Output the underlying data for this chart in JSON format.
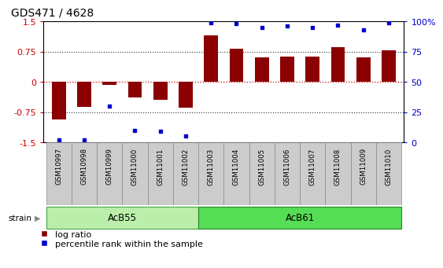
{
  "title": "GDS471 / 4628",
  "samples": [
    "GSM10997",
    "GSM10998",
    "GSM10999",
    "GSM11000",
    "GSM11001",
    "GSM11002",
    "GSM11003",
    "GSM11004",
    "GSM11005",
    "GSM11006",
    "GSM11007",
    "GSM11008",
    "GSM11009",
    "GSM11010"
  ],
  "log_ratio": [
    -0.93,
    -0.62,
    -0.07,
    -0.38,
    -0.45,
    -0.65,
    1.15,
    0.82,
    0.6,
    0.62,
    0.62,
    0.85,
    0.6,
    0.77
  ],
  "percentile": [
    2,
    2,
    30,
    10,
    9,
    5,
    99,
    98,
    95,
    96,
    95,
    97,
    93,
    99
  ],
  "groups": [
    {
      "name": "AcB55",
      "start": 0,
      "end": 5
    },
    {
      "name": "AcB61",
      "start": 6,
      "end": 13
    }
  ],
  "ylim_left": [
    -1.5,
    1.5
  ],
  "ylim_right": [
    0,
    100
  ],
  "yticks_left": [
    -1.5,
    -0.75,
    0,
    0.75,
    1.5
  ],
  "ytick_labels_left": [
    "-1.5",
    "-0.75",
    "0",
    "0.75",
    "1.5"
  ],
  "yticks_right": [
    0,
    25,
    50,
    75,
    100
  ],
  "ytick_labels_right": [
    "0",
    "25",
    "50",
    "75",
    "100%"
  ],
  "bar_color": "#8B0000",
  "dot_color": "#0000cc",
  "hline_color": "#cc0000",
  "dotted_color": "#333333",
  "bg_color": "#ffffff",
  "legend_labels": [
    "log ratio",
    "percentile rank within the sample"
  ],
  "strain_label": "strain",
  "group1_color": "#bbeeaa",
  "group2_color": "#55dd55",
  "sample_box_color": "#cccccc",
  "sample_box_edge": "#888888"
}
